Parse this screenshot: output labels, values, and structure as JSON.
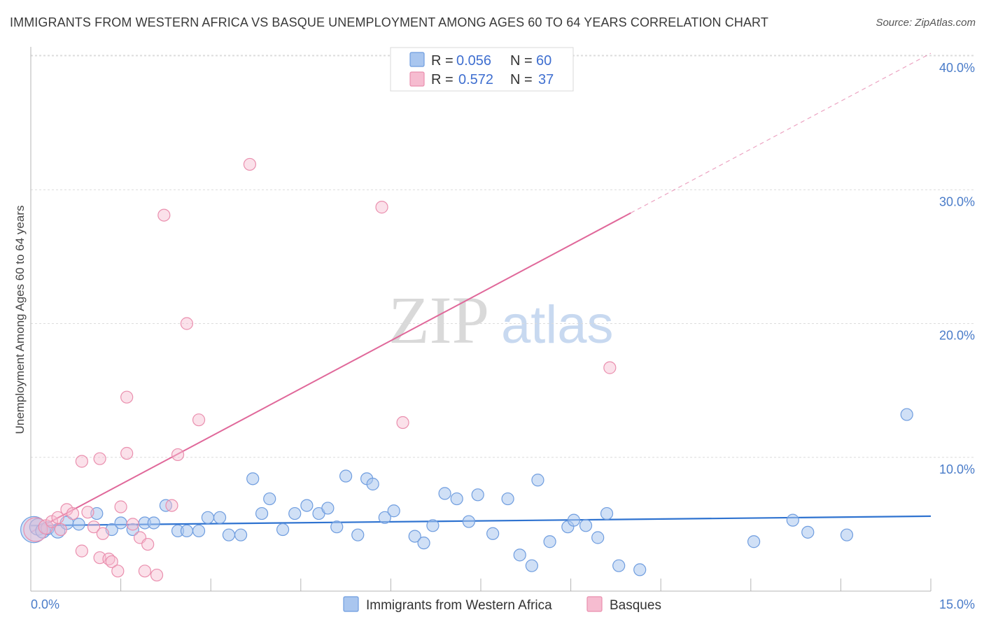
{
  "title": "IMMIGRANTS FROM WESTERN AFRICA VS BASQUE UNEMPLOYMENT AMONG AGES 60 TO 64 YEARS CORRELATION CHART",
  "source": "Source: ZipAtlas.com",
  "watermark": {
    "zip": "ZIP",
    "atlas": "atlas"
  },
  "legend": {
    "r_label": "R =",
    "n_label": "N =",
    "rows": [
      {
        "series": "blue",
        "r": "0.056",
        "n": "60"
      },
      {
        "series": "pink",
        "r": "0.572",
        "n": "37"
      }
    ]
  },
  "bottom_legend": [
    {
      "series": "blue",
      "label": "Immigrants from Western Africa"
    },
    {
      "series": "pink",
      "label": "Basques"
    }
  ],
  "colors": {
    "blue_fill": "#a9c6ef",
    "blue_stroke": "#6f9ddf",
    "blue_line": "#2f73d0",
    "pink_fill": "#f6bcd0",
    "pink_stroke": "#ea8fae",
    "pink_line": "#e0689a",
    "grid": "#dcdcdc",
    "tick": "#4a7cc9"
  },
  "chart_data": {
    "type": "scatter",
    "title": "IMMIGRANTS FROM WESTERN AFRICA VS BASQUE UNEMPLOYMENT AMONG AGES 60 TO 64 YEARS CORRELATION CHART",
    "xlabel": "",
    "ylabel": "Unemployment Among Ages 60 to 64 years",
    "xlim": [
      0,
      15
    ],
    "ylim": [
      0,
      40
    ],
    "x_tick_labels": [
      "0.0%",
      "15.0%"
    ],
    "y_ticks": [
      10,
      20,
      30,
      40
    ],
    "y_tick_labels": [
      "10.0%",
      "20.0%",
      "30.0%",
      "40.0%"
    ],
    "x_minor_ticks": [
      1.5,
      3.0,
      4.5,
      6.0,
      7.5,
      9.0,
      10.5,
      12.0,
      13.5
    ],
    "grid": true,
    "series": [
      {
        "name": "Immigrants from Western Africa",
        "color": "blue",
        "points": [
          [
            0.05,
            4.6,
            22
          ],
          [
            0.12,
            4.8,
            14
          ],
          [
            0.2,
            4.5,
            12
          ],
          [
            0.28,
            4.7,
            11
          ],
          [
            0.45,
            4.5,
            12
          ],
          [
            0.6,
            5.1,
            11
          ],
          [
            0.8,
            5.0,
            10
          ],
          [
            1.1,
            5.8,
            10
          ],
          [
            1.35,
            4.6,
            10
          ],
          [
            1.5,
            5.1,
            10
          ],
          [
            1.7,
            4.6,
            10
          ],
          [
            1.9,
            5.1,
            10
          ],
          [
            2.05,
            5.1,
            10
          ],
          [
            2.25,
            6.4,
            10
          ],
          [
            2.45,
            4.5,
            10
          ],
          [
            2.6,
            4.5,
            10
          ],
          [
            2.8,
            4.5,
            10
          ],
          [
            2.95,
            5.5,
            10
          ],
          [
            3.15,
            5.5,
            10
          ],
          [
            3.3,
            4.2,
            10
          ],
          [
            3.5,
            4.2,
            10
          ],
          [
            3.7,
            8.4,
            10
          ],
          [
            3.85,
            5.8,
            10
          ],
          [
            3.98,
            6.9,
            10
          ],
          [
            4.2,
            4.6,
            10
          ],
          [
            4.4,
            5.8,
            10
          ],
          [
            4.6,
            6.4,
            10
          ],
          [
            4.8,
            5.8,
            10
          ],
          [
            4.95,
            6.2,
            10
          ],
          [
            5.1,
            4.8,
            10
          ],
          [
            5.25,
            8.6,
            10
          ],
          [
            5.45,
            4.2,
            10
          ],
          [
            5.6,
            8.4,
            10
          ],
          [
            5.7,
            8.0,
            10
          ],
          [
            5.9,
            5.5,
            10
          ],
          [
            6.05,
            6.0,
            10
          ],
          [
            6.4,
            4.1,
            10
          ],
          [
            6.55,
            3.6,
            10
          ],
          [
            6.7,
            4.9,
            10
          ],
          [
            6.9,
            7.3,
            10
          ],
          [
            7.1,
            6.9,
            10
          ],
          [
            7.3,
            5.2,
            10
          ],
          [
            7.45,
            7.2,
            10
          ],
          [
            7.7,
            4.3,
            10
          ],
          [
            7.95,
            6.9,
            10
          ],
          [
            8.15,
            2.7,
            10
          ],
          [
            8.35,
            1.9,
            10
          ],
          [
            8.45,
            8.3,
            10
          ],
          [
            8.65,
            3.7,
            10
          ],
          [
            8.95,
            4.8,
            10
          ],
          [
            9.05,
            5.3,
            10
          ],
          [
            9.25,
            4.9,
            10
          ],
          [
            9.45,
            4.0,
            10
          ],
          [
            9.6,
            5.8,
            10
          ],
          [
            9.8,
            1.9,
            10
          ],
          [
            10.15,
            1.6,
            10
          ],
          [
            12.05,
            3.7,
            10
          ],
          [
            12.7,
            5.3,
            10
          ],
          [
            12.95,
            4.4,
            10
          ],
          [
            13.6,
            4.2,
            10
          ],
          [
            14.6,
            13.2,
            10
          ]
        ],
        "trend": {
          "x": [
            0,
            15
          ],
          "y": [
            4.9,
            5.6
          ]
        }
      },
      {
        "name": "Basques",
        "color": "pink",
        "points": [
          [
            0.08,
            4.6,
            20
          ],
          [
            0.25,
            4.8,
            12
          ],
          [
            0.35,
            5.2,
            10
          ],
          [
            0.45,
            5.5,
            10
          ],
          [
            0.5,
            4.6,
            10
          ],
          [
            0.6,
            6.1,
            10
          ],
          [
            0.7,
            5.8,
            10
          ],
          [
            0.85,
            3.0,
            10
          ],
          [
            0.85,
            9.7,
            10
          ],
          [
            0.95,
            5.9,
            10
          ],
          [
            1.05,
            4.8,
            10
          ],
          [
            1.15,
            2.5,
            10
          ],
          [
            1.15,
            9.9,
            10
          ],
          [
            1.2,
            4.3,
            10
          ],
          [
            1.3,
            2.4,
            10
          ],
          [
            1.35,
            2.2,
            10
          ],
          [
            1.45,
            1.5,
            10
          ],
          [
            1.5,
            6.3,
            10
          ],
          [
            1.6,
            10.3,
            10
          ],
          [
            1.6,
            14.5,
            10
          ],
          [
            1.7,
            5.0,
            10
          ],
          [
            1.82,
            4.0,
            10
          ],
          [
            1.9,
            1.5,
            10
          ],
          [
            1.95,
            3.5,
            10
          ],
          [
            2.1,
            1.2,
            10
          ],
          [
            2.22,
            28.1,
            10
          ],
          [
            2.35,
            6.4,
            10
          ],
          [
            2.45,
            10.2,
            10
          ],
          [
            2.6,
            20.0,
            10
          ],
          [
            2.8,
            12.8,
            10
          ],
          [
            3.65,
            31.9,
            10
          ],
          [
            5.85,
            28.7,
            10
          ],
          [
            6.2,
            12.6,
            10
          ],
          [
            9.65,
            16.7,
            10
          ]
        ],
        "trend": {
          "x": [
            0,
            15
          ],
          "y": [
            4.4,
            40.2
          ]
        },
        "trend_solid_until_x": 10.0
      }
    ]
  },
  "axes": {
    "y_axis_title": "Unemployment Among Ages 60 to 64 years"
  }
}
